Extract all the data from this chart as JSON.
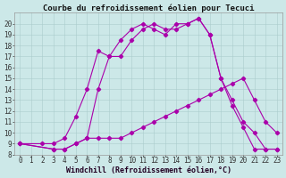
{
  "title": "Courbe du refroidissement éolien pour Tecuci",
  "xlabel": "Windchill (Refroidissement éolien,°C)",
  "background_color": "#cce8e8",
  "line_color": "#aa00aa",
  "xlim": [
    -0.5,
    23.5
  ],
  "ylim": [
    8,
    21
  ],
  "xticks": [
    0,
    1,
    2,
    3,
    4,
    5,
    6,
    7,
    8,
    9,
    10,
    11,
    12,
    13,
    14,
    15,
    16,
    17,
    18,
    19,
    20,
    21,
    22,
    23
  ],
  "yticks": [
    8,
    9,
    10,
    11,
    12,
    13,
    14,
    15,
    16,
    17,
    18,
    19,
    20
  ],
  "line1_x": [
    0,
    2,
    3,
    4,
    5,
    6,
    7,
    8,
    9,
    10,
    11,
    12,
    13,
    14,
    15,
    16,
    17,
    18,
    19,
    20,
    21,
    22,
    23
  ],
  "line1_y": [
    9,
    9,
    9,
    9.5,
    11.5,
    14,
    17.5,
    17,
    18.5,
    19.5,
    20,
    19.5,
    19,
    20,
    20,
    20.5,
    19,
    15,
    13,
    11,
    10,
    8.5,
    8.5
  ],
  "line2_x": [
    0,
    3,
    4,
    5,
    6,
    7,
    8,
    9,
    10,
    11,
    12,
    13,
    14,
    15,
    16,
    17,
    18,
    19,
    20,
    21,
    22,
    23
  ],
  "line2_y": [
    9,
    8.5,
    8.5,
    9,
    9.5,
    14,
    17,
    17,
    18.5,
    19.5,
    20,
    19.5,
    19.5,
    20,
    20.5,
    19,
    15,
    12.5,
    10.5,
    8.5,
    8.5,
    8.5
  ],
  "line3_x": [
    0,
    3,
    4,
    5,
    6,
    7,
    8,
    9,
    10,
    11,
    12,
    13,
    14,
    15,
    16,
    17,
    18,
    19,
    20,
    21,
    22,
    23
  ],
  "line3_y": [
    9,
    8.5,
    8.5,
    9,
    9.5,
    9.5,
    9.5,
    9.5,
    10,
    10.5,
    11,
    11.5,
    12,
    12.5,
    13,
    13.5,
    14,
    14.5,
    15,
    13,
    11,
    10
  ],
  "grid_color": "#aacccc",
  "title_fontsize": 6.5,
  "label_fontsize": 6,
  "tick_fontsize": 5.5
}
